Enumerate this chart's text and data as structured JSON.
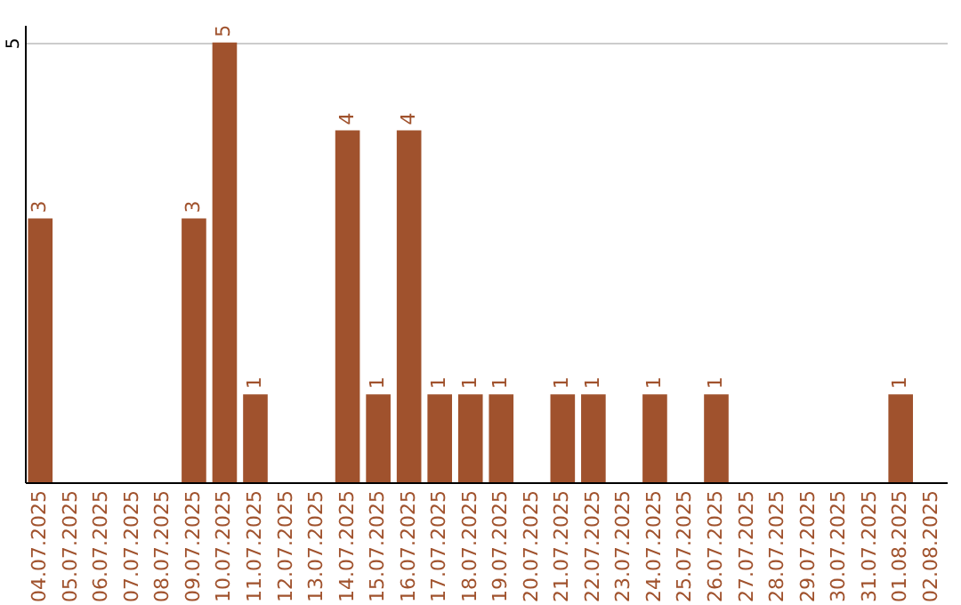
{
  "chart_data": {
    "type": "bar",
    "categories": [
      "04.07.2025",
      "05.07.2025",
      "06.07.2025",
      "07.07.2025",
      "08.07.2025",
      "09.07.2025",
      "10.07.2025",
      "11.07.2025",
      "12.07.2025",
      "13.07.2025",
      "14.07.2025",
      "15.07.2025",
      "16.07.2025",
      "17.07.2025",
      "18.07.2025",
      "19.07.2025",
      "20.07.2025",
      "21.07.2025",
      "22.07.2025",
      "23.07.2025",
      "24.07.2025",
      "25.07.2025",
      "26.07.2025",
      "27.07.2025",
      "28.07.2025",
      "29.07.2025",
      "30.07.2025",
      "31.07.2025",
      "01.08.2025",
      "02.08.2025"
    ],
    "values": [
      3,
      0,
      0,
      0,
      0,
      3,
      5,
      1,
      0,
      0,
      4,
      1,
      4,
      1,
      1,
      1,
      0,
      1,
      1,
      0,
      1,
      0,
      1,
      0,
      0,
      0,
      0,
      0,
      1,
      0
    ],
    "value_labels": [
      "3",
      null,
      null,
      null,
      null,
      "3",
      "5",
      "1",
      null,
      null,
      "4",
      "1",
      "4",
      "1",
      "1",
      "1",
      null,
      "1",
      "1",
      null,
      "1",
      null,
      "1",
      null,
      null,
      null,
      null,
      null,
      "1",
      null
    ],
    "color": "#a0522d",
    "ylim": [
      0,
      5.2
    ],
    "yticks": [
      5
    ],
    "grid": "y"
  }
}
